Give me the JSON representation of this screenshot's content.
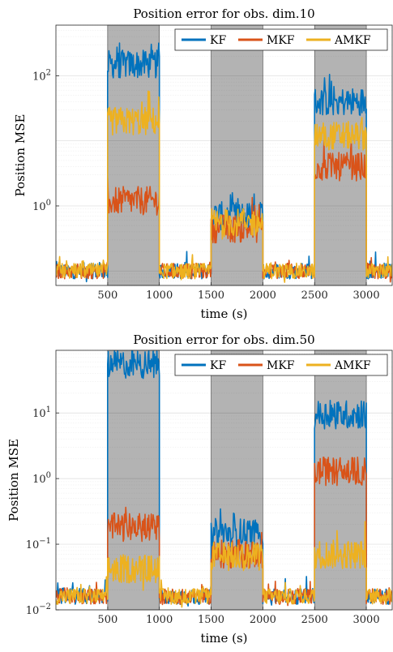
{
  "chart_data": [
    {
      "type": "line",
      "title": "Position error for obs. dim.10",
      "xlabel": "time (s)",
      "ylabel": "Position MSE",
      "xlim": [
        0,
        3250
      ],
      "ylim": [
        0.06,
        600
      ],
      "yscale": "log",
      "xticks": [
        500,
        1000,
        1500,
        2000,
        2500,
        3000
      ],
      "xtick_labels": [
        "500",
        "1000",
        "1500",
        "2000",
        "2500",
        "3000"
      ],
      "yticks": [
        1,
        100
      ],
      "ytick_labels": [
        {
          "base": "10",
          "exp": "0"
        },
        {
          "base": "10",
          "exp": "2"
        }
      ],
      "grid": true,
      "legend_position": "top-right",
      "shaded_intervals": [
        [
          500,
          1000
        ],
        [
          1500,
          2000
        ],
        [
          2500,
          3000
        ]
      ],
      "series": [
        {
          "name": "KF",
          "color": "#0072BD",
          "segments": [
            {
              "x0": 0,
              "x1": 500,
              "level": 0.1
            },
            {
              "x0": 500,
              "x1": 1000,
              "level": 150
            },
            {
              "x0": 1000,
              "x1": 1500,
              "level": 0.1
            },
            {
              "x0": 1500,
              "x1": 2000,
              "level": 0.7
            },
            {
              "x0": 2000,
              "x1": 2500,
              "level": 0.1
            },
            {
              "x0": 2500,
              "x1": 3000,
              "level": 40
            },
            {
              "x0": 3000,
              "x1": 3250,
              "level": 0.1
            }
          ]
        },
        {
          "name": "MKF",
          "color": "#D95319",
          "segments": [
            {
              "x0": 0,
              "x1": 500,
              "level": 0.1
            },
            {
              "x0": 500,
              "x1": 1000,
              "level": 1.2
            },
            {
              "x0": 1000,
              "x1": 1500,
              "level": 0.1
            },
            {
              "x0": 1500,
              "x1": 2000,
              "level": 0.45
            },
            {
              "x0": 2000,
              "x1": 2500,
              "level": 0.1
            },
            {
              "x0": 2500,
              "x1": 3000,
              "level": 4
            },
            {
              "x0": 3000,
              "x1": 3250,
              "level": 0.1
            }
          ]
        },
        {
          "name": "AMKF",
          "color": "#EDB120",
          "segments": [
            {
              "x0": 0,
              "x1": 500,
              "level": 0.1
            },
            {
              "x0": 500,
              "x1": 1000,
              "level": 20
            },
            {
              "x0": 1000,
              "x1": 1500,
              "level": 0.1
            },
            {
              "x0": 1500,
              "x1": 2000,
              "level": 0.55
            },
            {
              "x0": 2000,
              "x1": 2500,
              "level": 0.1
            },
            {
              "x0": 2500,
              "x1": 3000,
              "level": 12
            },
            {
              "x0": 3000,
              "x1": 3250,
              "level": 0.1
            }
          ]
        }
      ]
    },
    {
      "type": "line",
      "title": "Position error for obs. dim.50",
      "xlabel": "time (s)",
      "ylabel": "Position MSE",
      "xlim": [
        0,
        3250
      ],
      "ylim": [
        0.01,
        90
      ],
      "yscale": "log",
      "xticks": [
        500,
        1000,
        1500,
        2000,
        2500,
        3000
      ],
      "xtick_labels": [
        "500",
        "1000",
        "1500",
        "2000",
        "2500",
        "3000"
      ],
      "yticks": [
        0.01,
        0.1,
        1,
        10
      ],
      "ytick_labels": [
        {
          "base": "10",
          "exp": "−2"
        },
        {
          "base": "10",
          "exp": "−1"
        },
        {
          "base": "10",
          "exp": "0"
        },
        {
          "base": "10",
          "exp": "1"
        }
      ],
      "grid": true,
      "legend_position": "top-right",
      "shaded_intervals": [
        [
          500,
          1000
        ],
        [
          1500,
          2000
        ],
        [
          2500,
          3000
        ]
      ],
      "series": [
        {
          "name": "KF",
          "color": "#0072BD",
          "segments": [
            {
              "x0": 0,
              "x1": 500,
              "level": 0.016
            },
            {
              "x0": 500,
              "x1": 1000,
              "level": 55
            },
            {
              "x0": 1000,
              "x1": 1500,
              "level": 0.016
            },
            {
              "x0": 1500,
              "x1": 2000,
              "level": 0.15
            },
            {
              "x0": 2000,
              "x1": 2500,
              "level": 0.016
            },
            {
              "x0": 2500,
              "x1": 3000,
              "level": 9.5
            },
            {
              "x0": 3000,
              "x1": 3250,
              "level": 0.016
            }
          ]
        },
        {
          "name": "MKF",
          "color": "#D95319",
          "segments": [
            {
              "x0": 0,
              "x1": 500,
              "level": 0.016
            },
            {
              "x0": 500,
              "x1": 1000,
              "level": 0.18
            },
            {
              "x0": 1000,
              "x1": 1500,
              "level": 0.016
            },
            {
              "x0": 1500,
              "x1": 2000,
              "level": 0.07
            },
            {
              "x0": 2000,
              "x1": 2500,
              "level": 0.016
            },
            {
              "x0": 2500,
              "x1": 3000,
              "level": 1.3
            },
            {
              "x0": 3000,
              "x1": 3250,
              "level": 0.016
            }
          ]
        },
        {
          "name": "AMKF",
          "color": "#EDB120",
          "segments": [
            {
              "x0": 0,
              "x1": 500,
              "level": 0.016
            },
            {
              "x0": 500,
              "x1": 1000,
              "level": 0.042
            },
            {
              "x0": 1000,
              "x1": 1500,
              "level": 0.016
            },
            {
              "x0": 1500,
              "x1": 2000,
              "level": 0.065
            },
            {
              "x0": 2000,
              "x1": 2500,
              "level": 0.016
            },
            {
              "x0": 2500,
              "x1": 3000,
              "level": 0.07
            },
            {
              "x0": 3000,
              "x1": 3250,
              "level": 0.016
            }
          ]
        }
      ]
    }
  ]
}
